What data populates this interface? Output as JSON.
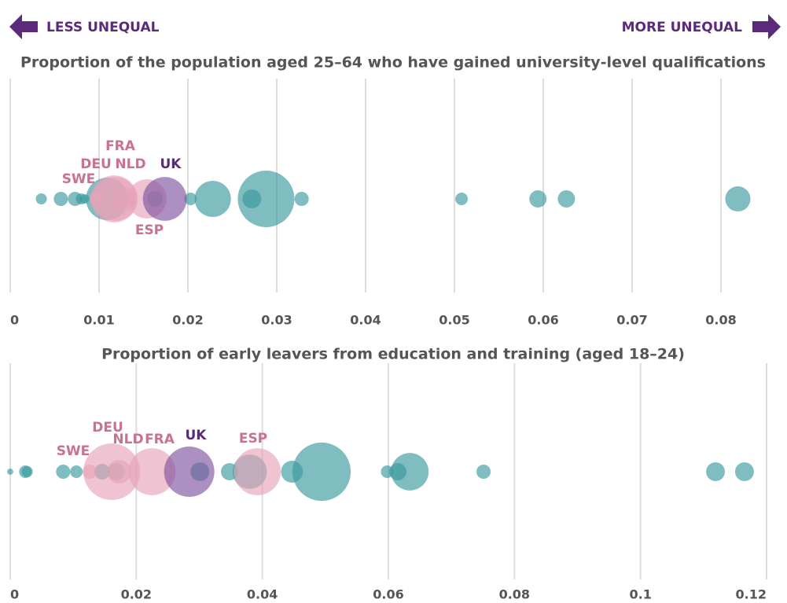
{
  "header": {
    "left": "LESS UNEQUAL",
    "right": "MORE UNEQUAL"
  },
  "chart_data": [
    {
      "type": "bubble-strip",
      "title": "Proportion of the population aged 25–64 who have gained university-level qualifications",
      "xlim": [
        0,
        0.08
      ],
      "xticks": [
        0,
        0.01,
        0.02,
        0.03,
        0.04,
        0.05,
        0.06,
        0.07,
        0.08
      ],
      "grid": true,
      "series": [
        {
          "color": "#3a9a9e",
          "x": [
            0.0035,
            0.0057,
            0.0073,
            0.008,
            0.0084,
            0.0109,
            0.0127,
            0.0163,
            0.0203,
            0.0228,
            0.0272,
            0.0288,
            0.0328,
            0.0508,
            0.0594,
            0.0626,
            0.0819
          ],
          "sizes": [
            3.8,
            6.3,
            6.3,
            3.8,
            2.8,
            56,
            4.9,
            7.7,
            4.9,
            41,
            11.1,
            100,
            6.3,
            4.9,
            9.3,
            9.3,
            19.8
          ]
        },
        {
          "color": "#e6a3b8",
          "labels": [
            "SWE",
            "DEU",
            "NLD",
            "FRA",
            "ESP"
          ],
          "x": [
            0.0098,
            0.0117,
            0.0128,
            0.0118,
            0.0154
          ],
          "sizes": [
            7.7,
            69,
            17.4,
            60,
            48
          ]
        },
        {
          "color": "#7f55a0",
          "labels": [
            "UK"
          ],
          "x": [
            0.0174
          ],
          "sizes": [
            60
          ]
        }
      ]
    },
    {
      "type": "bubble-strip",
      "title": "Proportion of early leavers from education and training (aged 18–24)",
      "xlim": [
        0,
        0.12
      ],
      "xticks": [
        0,
        0.02,
        0.04,
        0.06,
        0.08,
        0.1,
        0.12
      ],
      "grid": true,
      "series": [
        {
          "color": "#3a9a9e",
          "x": [
            0,
            0.0024,
            0.0027,
            0.0084,
            0.0105,
            0.0146,
            0.0168,
            0.0301,
            0.0348,
            0.038,
            0.0447,
            0.0494,
            0.0598,
            0.0615,
            0.0634,
            0.0751,
            0.1119,
            0.1165
          ],
          "sizes": [
            1.2,
            4.9,
            3.8,
            6.3,
            4.9,
            7.7,
            9.3,
            11.1,
            9.3,
            37,
            15,
            106,
            4.9,
            9.3,
            44,
            6.3,
            11.1,
            11.1
          ]
        },
        {
          "color": "#e6a3b8",
          "labels": [
            "SWE",
            "DEU",
            "NLD",
            "FRA",
            "ESP"
          ],
          "x": [
            0.0126,
            0.0161,
            0.0173,
            0.0225,
            0.0392
          ],
          "sizes": [
            6.3,
            100,
            17.4,
            69,
            69
          ]
        },
        {
          "color": "#7f55a0",
          "labels": [
            "UK"
          ],
          "x": [
            0.0284
          ],
          "sizes": [
            79
          ]
        }
      ]
    }
  ]
}
